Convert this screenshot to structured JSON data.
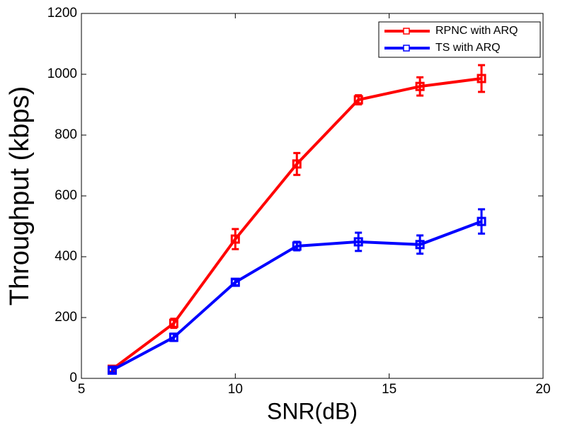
{
  "chart_data": {
    "type": "line",
    "x_label": "SNR(dB)",
    "y_label": "Throughput (kbps)",
    "x": [
      6,
      8,
      10,
      12,
      14,
      16,
      18
    ],
    "series": [
      {
        "name": "RPNC with ARQ",
        "color": "#ff0000",
        "values": [
          30,
          181,
          458,
          705,
          916,
          960,
          986
        ],
        "errors": [
          8,
          15,
          33,
          36,
          15,
          30,
          44
        ]
      },
      {
        "name": "TS with ARQ",
        "color": "#0000ff",
        "values": [
          27,
          135,
          316,
          435,
          449,
          440,
          516
        ],
        "errors": [
          8,
          12,
          10,
          14,
          30,
          30,
          40
        ]
      }
    ],
    "xlim": [
      5,
      20
    ],
    "xticks": [
      5,
      10,
      15,
      20
    ],
    "ylim": [
      0,
      1200
    ],
    "yticks": [
      0,
      200,
      400,
      600,
      800,
      1000,
      1200
    ],
    "grid": false,
    "legend": "upper right"
  }
}
